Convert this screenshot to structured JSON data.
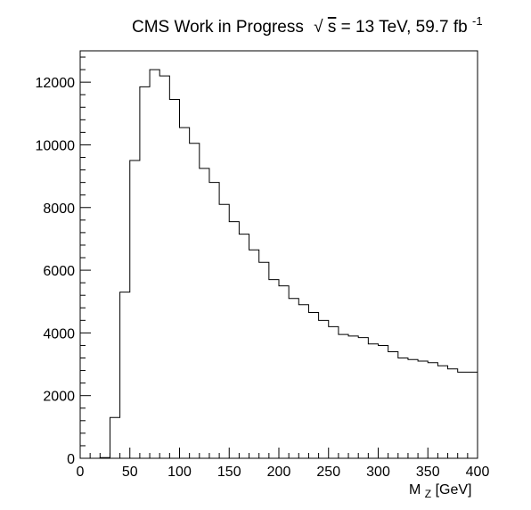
{
  "title": {
    "prefix": "CMS Work in Progress",
    "sqrt_symbol": "√",
    "sqrt_arg": "s",
    "energy": " = 13 TeV, 59.7 fb",
    "lumi_exponent": "-1"
  },
  "chart_data": {
    "type": "histogram",
    "xlabel_main": "M",
    "xlabel_sub": "Z",
    "xlabel_unit": " [GeV]",
    "ylabel": "",
    "xlim": [
      0,
      400
    ],
    "ylim": [
      0,
      13000
    ],
    "grid": false,
    "legend": "none",
    "bin_width": 10,
    "bin_edges_start": 0,
    "values": [
      0,
      0,
      20,
      1300,
      5300,
      9500,
      11850,
      12400,
      12200,
      11450,
      10550,
      10050,
      9250,
      8800,
      8100,
      7550,
      7150,
      6650,
      6250,
      5700,
      5500,
      5100,
      4900,
      4650,
      4400,
      4200,
      3950,
      3900,
      3850,
      3650,
      3600,
      3400,
      3200,
      3150,
      3100,
      3050,
      2950,
      2850,
      2750,
      2750
    ],
    "x_ticks": [
      0,
      50,
      100,
      150,
      200,
      250,
      300,
      350,
      400
    ],
    "x_tick_labels": [
      "0",
      "50",
      "100",
      "150",
      "200",
      "250",
      "300",
      "350",
      "400"
    ],
    "y_ticks": [
      0,
      2000,
      4000,
      6000,
      8000,
      10000,
      12000
    ],
    "y_tick_labels": [
      "0",
      "2000",
      "4000",
      "6000",
      "8000",
      "10000",
      "12000"
    ],
    "line_color": "#000000"
  }
}
